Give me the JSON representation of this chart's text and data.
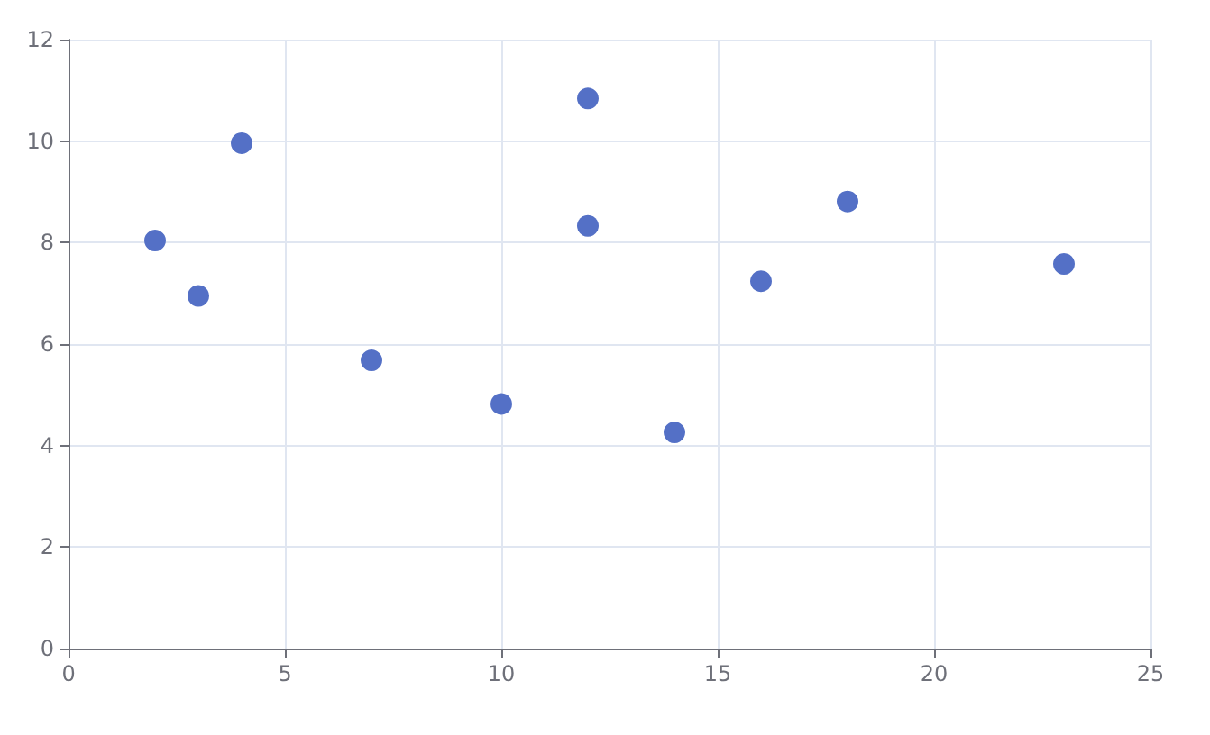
{
  "chart_data": {
    "type": "scatter",
    "x": [
      2,
      3,
      4,
      7,
      10,
      12,
      12,
      14,
      16,
      18,
      23
    ],
    "values": [
      8.04,
      6.95,
      9.96,
      5.68,
      4.82,
      10.84,
      8.33,
      4.26,
      7.24,
      8.81,
      7.58
    ],
    "color": "#5470c6",
    "xlim": [
      0,
      25
    ],
    "xticks": [
      0,
      5,
      10,
      15,
      20,
      25
    ],
    "ylim": [
      0,
      12
    ],
    "yticks": [
      0,
      2,
      4,
      6,
      8,
      10,
      12
    ],
    "grid": true,
    "marker": "circle"
  }
}
